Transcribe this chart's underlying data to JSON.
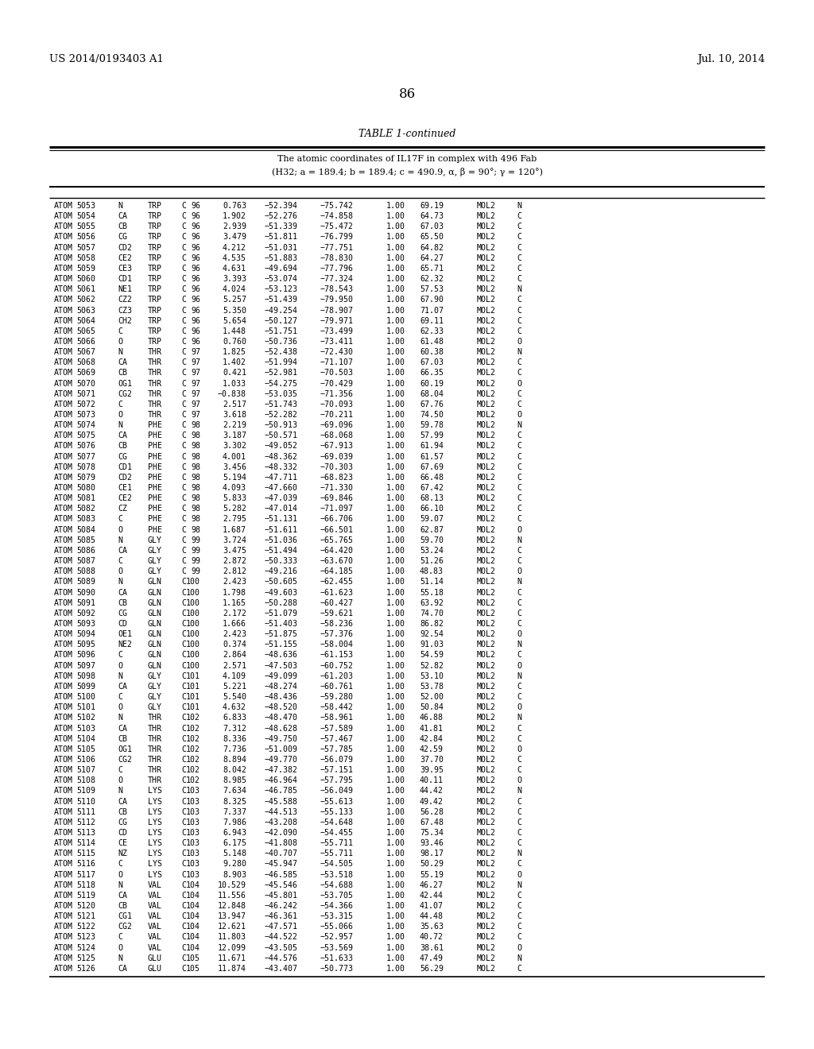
{
  "header_left": "US 2014/0193403 A1",
  "header_right": "Jul. 10, 2014",
  "page_number": "86",
  "table_title": "TABLE 1-continued",
  "table_subtitle_line1": "The atomic coordinates of IL17F in complex with 496 Fab",
  "table_subtitle_line2": "(H32; a = 189.4; b = 189.4; c = 490.9, α, β = 90°; γ = 120°)",
  "rows": [
    [
      "ATOM",
      "5053",
      "N",
      "TRP",
      "C",
      "96",
      "0.763",
      "−52.394",
      "−75.742",
      "1.00",
      "69.19",
      "MOL2",
      "N"
    ],
    [
      "ATOM",
      "5054",
      "CA",
      "TRP",
      "C",
      "96",
      "1.902",
      "−52.276",
      "−74.858",
      "1.00",
      "64.73",
      "MOL2",
      "C"
    ],
    [
      "ATOM",
      "5055",
      "CB",
      "TRP",
      "C",
      "96",
      "2.939",
      "−51.339",
      "−75.472",
      "1.00",
      "67.03",
      "MOL2",
      "C"
    ],
    [
      "ATOM",
      "5056",
      "CG",
      "TRP",
      "C",
      "96",
      "3.479",
      "−51.811",
      "−76.799",
      "1.00",
      "65.50",
      "MOL2",
      "C"
    ],
    [
      "ATOM",
      "5057",
      "CD2",
      "TRP",
      "C",
      "96",
      "4.212",
      "−51.031",
      "−77.751",
      "1.00",
      "64.82",
      "MOL2",
      "C"
    ],
    [
      "ATOM",
      "5058",
      "CE2",
      "TRP",
      "C",
      "96",
      "4.535",
      "−51.883",
      "−78.830",
      "1.00",
      "64.27",
      "MOL2",
      "C"
    ],
    [
      "ATOM",
      "5059",
      "CE3",
      "TRP",
      "C",
      "96",
      "4.631",
      "−49.694",
      "−77.796",
      "1.00",
      "65.71",
      "MOL2",
      "C"
    ],
    [
      "ATOM",
      "5060",
      "CD1",
      "TRP",
      "C",
      "96",
      "3.393",
      "−53.074",
      "−77.324",
      "1.00",
      "62.32",
      "MOL2",
      "C"
    ],
    [
      "ATOM",
      "5061",
      "NE1",
      "TRP",
      "C",
      "96",
      "4.024",
      "−53.123",
      "−78.543",
      "1.00",
      "57.53",
      "MOL2",
      "N"
    ],
    [
      "ATOM",
      "5062",
      "CZ2",
      "TRP",
      "C",
      "96",
      "5.257",
      "−51.439",
      "−79.950",
      "1.00",
      "67.90",
      "MOL2",
      "C"
    ],
    [
      "ATOM",
      "5063",
      "CZ3",
      "TRP",
      "C",
      "96",
      "5.350",
      "−49.254",
      "−78.907",
      "1.00",
      "71.07",
      "MOL2",
      "C"
    ],
    [
      "ATOM",
      "5064",
      "CH2",
      "TRP",
      "C",
      "96",
      "5.654",
      "−50.127",
      "−79.971",
      "1.00",
      "69.11",
      "MOL2",
      "C"
    ],
    [
      "ATOM",
      "5065",
      "C",
      "TRP",
      "C",
      "96",
      "1.448",
      "−51.751",
      "−73.499",
      "1.00",
      "62.33",
      "MOL2",
      "C"
    ],
    [
      "ATOM",
      "5066",
      "O",
      "TRP",
      "C",
      "96",
      "0.760",
      "−50.736",
      "−73.411",
      "1.00",
      "61.48",
      "MOL2",
      "O"
    ],
    [
      "ATOM",
      "5067",
      "N",
      "THR",
      "C",
      "97",
      "1.825",
      "−52.438",
      "−72.430",
      "1.00",
      "60.38",
      "MOL2",
      "N"
    ],
    [
      "ATOM",
      "5068",
      "CA",
      "THR",
      "C",
      "97",
      "1.402",
      "−51.994",
      "−71.107",
      "1.00",
      "67.03",
      "MOL2",
      "C"
    ],
    [
      "ATOM",
      "5069",
      "CB",
      "THR",
      "C",
      "97",
      "0.421",
      "−52.981",
      "−70.503",
      "1.00",
      "66.35",
      "MOL2",
      "C"
    ],
    [
      "ATOM",
      "5070",
      "OG1",
      "THR",
      "C",
      "97",
      "1.033",
      "−54.275",
      "−70.429",
      "1.00",
      "60.19",
      "MOL2",
      "O"
    ],
    [
      "ATOM",
      "5071",
      "CG2",
      "THR",
      "C",
      "97",
      "−0.838",
      "−53.035",
      "−71.356",
      "1.00",
      "68.04",
      "MOL2",
      "C"
    ],
    [
      "ATOM",
      "5072",
      "C",
      "THR",
      "C",
      "97",
      "2.517",
      "−51.743",
      "−70.093",
      "1.00",
      "67.76",
      "MOL2",
      "C"
    ],
    [
      "ATOM",
      "5073",
      "O",
      "THR",
      "C",
      "97",
      "3.618",
      "−52.282",
      "−70.211",
      "1.00",
      "74.50",
      "MOL2",
      "O"
    ],
    [
      "ATOM",
      "5074",
      "N",
      "PHE",
      "C",
      "98",
      "2.219",
      "−50.913",
      "−69.096",
      "1.00",
      "59.78",
      "MOL2",
      "N"
    ],
    [
      "ATOM",
      "5075",
      "CA",
      "PHE",
      "C",
      "98",
      "3.187",
      "−50.571",
      "−68.068",
      "1.00",
      "57.99",
      "MOL2",
      "C"
    ],
    [
      "ATOM",
      "5076",
      "CB",
      "PHE",
      "C",
      "98",
      "3.302",
      "−49.052",
      "−67.913",
      "1.00",
      "61.94",
      "MOL2",
      "C"
    ],
    [
      "ATOM",
      "5077",
      "CG",
      "PHE",
      "C",
      "98",
      "4.001",
      "−48.362",
      "−69.039",
      "1.00",
      "61.57",
      "MOL2",
      "C"
    ],
    [
      "ATOM",
      "5078",
      "CD1",
      "PHE",
      "C",
      "98",
      "3.456",
      "−48.332",
      "−70.303",
      "1.00",
      "67.69",
      "MOL2",
      "C"
    ],
    [
      "ATOM",
      "5079",
      "CD2",
      "PHE",
      "C",
      "98",
      "5.194",
      "−47.711",
      "−68.823",
      "1.00",
      "66.48",
      "MOL2",
      "C"
    ],
    [
      "ATOM",
      "5080",
      "CE1",
      "PHE",
      "C",
      "98",
      "4.093",
      "−47.660",
      "−71.330",
      "1.00",
      "67.42",
      "MOL2",
      "C"
    ],
    [
      "ATOM",
      "5081",
      "CE2",
      "PHE",
      "C",
      "98",
      "5.833",
      "−47.039",
      "−69.846",
      "1.00",
      "68.13",
      "MOL2",
      "C"
    ],
    [
      "ATOM",
      "5082",
      "CZ",
      "PHE",
      "C",
      "98",
      "5.282",
      "−47.014",
      "−71.097",
      "1.00",
      "66.10",
      "MOL2",
      "C"
    ],
    [
      "ATOM",
      "5083",
      "C",
      "PHE",
      "C",
      "98",
      "2.795",
      "−51.131",
      "−66.706",
      "1.00",
      "59.07",
      "MOL2",
      "C"
    ],
    [
      "ATOM",
      "5084",
      "O",
      "PHE",
      "C",
      "98",
      "1.687",
      "−51.611",
      "−66.501",
      "1.00",
      "62.87",
      "MOL2",
      "O"
    ],
    [
      "ATOM",
      "5085",
      "N",
      "GLY",
      "C",
      "99",
      "3.724",
      "−51.036",
      "−65.765",
      "1.00",
      "59.70",
      "MOL2",
      "N"
    ],
    [
      "ATOM",
      "5086",
      "CA",
      "GLY",
      "C",
      "99",
      "3.475",
      "−51.494",
      "−64.420",
      "1.00",
      "53.24",
      "MOL2",
      "C"
    ],
    [
      "ATOM",
      "5087",
      "C",
      "GLY",
      "C",
      "99",
      "2.872",
      "−50.333",
      "−63.670",
      "1.00",
      "51.26",
      "MOL2",
      "C"
    ],
    [
      "ATOM",
      "5088",
      "O",
      "GLY",
      "C",
      "99",
      "2.812",
      "−49.216",
      "−64.185",
      "1.00",
      "48.83",
      "MOL2",
      "O"
    ],
    [
      "ATOM",
      "5089",
      "N",
      "GLN",
      "C",
      "100",
      "2.423",
      "−50.605",
      "−62.455",
      "1.00",
      "51.14",
      "MOL2",
      "N"
    ],
    [
      "ATOM",
      "5090",
      "CA",
      "GLN",
      "C",
      "100",
      "1.798",
      "−49.603",
      "−61.623",
      "1.00",
      "55.18",
      "MOL2",
      "C"
    ],
    [
      "ATOM",
      "5091",
      "CB",
      "GLN",
      "C",
      "100",
      "1.165",
      "−50.288",
      "−60.427",
      "1.00",
      "63.92",
      "MOL2",
      "C"
    ],
    [
      "ATOM",
      "5092",
      "CG",
      "GLN",
      "C",
      "100",
      "2.172",
      "−51.079",
      "−59.621",
      "1.00",
      "74.70",
      "MOL2",
      "C"
    ],
    [
      "ATOM",
      "5093",
      "CD",
      "GLN",
      "C",
      "100",
      "1.666",
      "−51.403",
      "−58.236",
      "1.00",
      "86.82",
      "MOL2",
      "C"
    ],
    [
      "ATOM",
      "5094",
      "OE1",
      "GLN",
      "C",
      "100",
      "2.423",
      "−51.875",
      "−57.376",
      "1.00",
      "92.54",
      "MOL2",
      "O"
    ],
    [
      "ATOM",
      "5095",
      "NE2",
      "GLN",
      "C",
      "100",
      "0.374",
      "−51.155",
      "−58.004",
      "1.00",
      "91.03",
      "MOL2",
      "N"
    ],
    [
      "ATOM",
      "5096",
      "C",
      "GLN",
      "C",
      "100",
      "2.864",
      "−48.636",
      "−61.153",
      "1.00",
      "54.59",
      "MOL2",
      "C"
    ],
    [
      "ATOM",
      "5097",
      "O",
      "GLN",
      "C",
      "100",
      "2.571",
      "−47.503",
      "−60.752",
      "1.00",
      "52.82",
      "MOL2",
      "O"
    ],
    [
      "ATOM",
      "5098",
      "N",
      "GLY",
      "C",
      "101",
      "4.109",
      "−49.099",
      "−61.203",
      "1.00",
      "53.10",
      "MOL2",
      "N"
    ],
    [
      "ATOM",
      "5099",
      "CA",
      "GLY",
      "C",
      "101",
      "5.221",
      "−48.274",
      "−60.761",
      "1.00",
      "53.78",
      "MOL2",
      "C"
    ],
    [
      "ATOM",
      "5100",
      "C",
      "GLY",
      "C",
      "101",
      "5.540",
      "−48.436",
      "−59.280",
      "1.00",
      "52.00",
      "MOL2",
      "C"
    ],
    [
      "ATOM",
      "5101",
      "O",
      "GLY",
      "C",
      "101",
      "4.632",
      "−48.520",
      "−58.442",
      "1.00",
      "50.84",
      "MOL2",
      "O"
    ],
    [
      "ATOM",
      "5102",
      "N",
      "THR",
      "C",
      "102",
      "6.833",
      "−48.470",
      "−58.961",
      "1.00",
      "46.88",
      "MOL2",
      "N"
    ],
    [
      "ATOM",
      "5103",
      "CA",
      "THR",
      "C",
      "102",
      "7.312",
      "−48.628",
      "−57.589",
      "1.00",
      "41.81",
      "MOL2",
      "C"
    ],
    [
      "ATOM",
      "5104",
      "CB",
      "THR",
      "C",
      "102",
      "8.336",
      "−49.750",
      "−57.467",
      "1.00",
      "42.84",
      "MOL2",
      "C"
    ],
    [
      "ATOM",
      "5105",
      "OG1",
      "THR",
      "C",
      "102",
      "7.736",
      "−51.009",
      "−57.785",
      "1.00",
      "42.59",
      "MOL2",
      "O"
    ],
    [
      "ATOM",
      "5106",
      "CG2",
      "THR",
      "C",
      "102",
      "8.894",
      "−49.770",
      "−56.079",
      "1.00",
      "37.70",
      "MOL2",
      "C"
    ],
    [
      "ATOM",
      "5107",
      "C",
      "THR",
      "C",
      "102",
      "8.042",
      "−47.382",
      "−57.151",
      "1.00",
      "39.95",
      "MOL2",
      "C"
    ],
    [
      "ATOM",
      "5108",
      "O",
      "THR",
      "C",
      "102",
      "8.985",
      "−46.964",
      "−57.795",
      "1.00",
      "40.11",
      "MOL2",
      "O"
    ],
    [
      "ATOM",
      "5109",
      "N",
      "LYS",
      "C",
      "103",
      "7.634",
      "−46.785",
      "−56.049",
      "1.00",
      "44.42",
      "MOL2",
      "N"
    ],
    [
      "ATOM",
      "5110",
      "CA",
      "LYS",
      "C",
      "103",
      "8.325",
      "−45.588",
      "−55.613",
      "1.00",
      "49.42",
      "MOL2",
      "C"
    ],
    [
      "ATOM",
      "5111",
      "CB",
      "LYS",
      "C",
      "103",
      "7.337",
      "−44.513",
      "−55.133",
      "1.00",
      "56.28",
      "MOL2",
      "C"
    ],
    [
      "ATOM",
      "5112",
      "CG",
      "LYS",
      "C",
      "103",
      "7.986",
      "−43.208",
      "−54.648",
      "1.00",
      "67.48",
      "MOL2",
      "C"
    ],
    [
      "ATOM",
      "5113",
      "CD",
      "LYS",
      "C",
      "103",
      "6.943",
      "−42.090",
      "−54.455",
      "1.00",
      "75.34",
      "MOL2",
      "C"
    ],
    [
      "ATOM",
      "5114",
      "CE",
      "LYS",
      "C",
      "103",
      "6.175",
      "−41.808",
      "−55.711",
      "1.00",
      "93.46",
      "MOL2",
      "C"
    ],
    [
      "ATOM",
      "5115",
      "NZ",
      "LYS",
      "C",
      "103",
      "5.148",
      "−40.707",
      "−55.711",
      "1.00",
      "98.17",
      "MOL2",
      "N"
    ],
    [
      "ATOM",
      "5116",
      "C",
      "LYS",
      "C",
      "103",
      "9.280",
      "−45.947",
      "−54.505",
      "1.00",
      "50.29",
      "MOL2",
      "C"
    ],
    [
      "ATOM",
      "5117",
      "O",
      "LYS",
      "C",
      "103",
      "8.903",
      "−46.585",
      "−53.518",
      "1.00",
      "55.19",
      "MOL2",
      "O"
    ],
    [
      "ATOM",
      "5118",
      "N",
      "VAL",
      "C",
      "104",
      "10.529",
      "−45.546",
      "−54.688",
      "1.00",
      "46.27",
      "MOL2",
      "N"
    ],
    [
      "ATOM",
      "5119",
      "CA",
      "VAL",
      "C",
      "104",
      "11.556",
      "−45.801",
      "−53.705",
      "1.00",
      "42.44",
      "MOL2",
      "C"
    ],
    [
      "ATOM",
      "5120",
      "CB",
      "VAL",
      "C",
      "104",
      "12.848",
      "−46.242",
      "−54.366",
      "1.00",
      "41.07",
      "MOL2",
      "C"
    ],
    [
      "ATOM",
      "5121",
      "CG1",
      "VAL",
      "C",
      "104",
      "13.947",
      "−46.361",
      "−53.315",
      "1.00",
      "44.48",
      "MOL2",
      "C"
    ],
    [
      "ATOM",
      "5122",
      "CG2",
      "VAL",
      "C",
      "104",
      "12.621",
      "−47.571",
      "−55.066",
      "1.00",
      "35.63",
      "MOL2",
      "C"
    ],
    [
      "ATOM",
      "5123",
      "C",
      "VAL",
      "C",
      "104",
      "11.803",
      "−44.522",
      "−52.957",
      "1.00",
      "40.72",
      "MOL2",
      "C"
    ],
    [
      "ATOM",
      "5124",
      "O",
      "VAL",
      "C",
      "104",
      "12.099",
      "−43.505",
      "−53.569",
      "1.00",
      "38.61",
      "MOL2",
      "O"
    ],
    [
      "ATOM",
      "5125",
      "N",
      "GLU",
      "C",
      "105",
      "11.671",
      "−44.576",
      "−51.633",
      "1.00",
      "47.49",
      "MOL2",
      "N"
    ],
    [
      "ATOM",
      "5126",
      "CA",
      "GLU",
      "C",
      "105",
      "11.874",
      "−43.407",
      "−50.773",
      "1.00",
      "56.29",
      "MOL2",
      "C"
    ]
  ],
  "bg_color": "#ffffff"
}
